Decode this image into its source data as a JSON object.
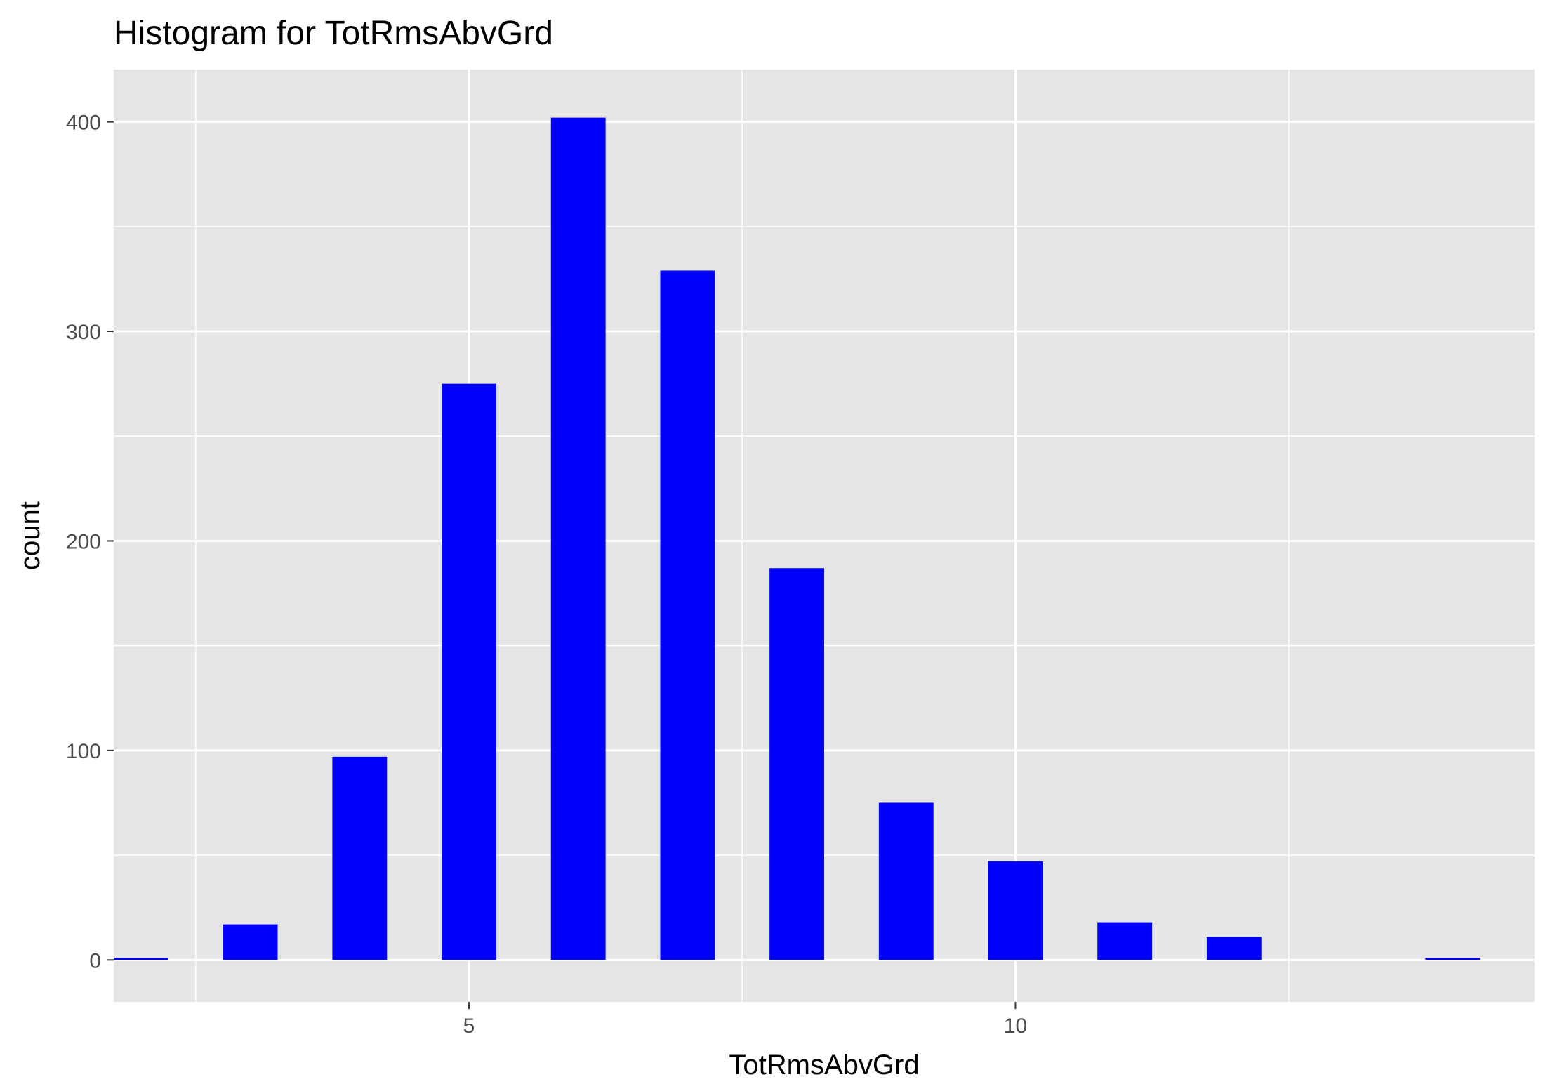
{
  "chart_data": {
    "type": "bar",
    "title": "Histogram for TotRmsAbvGrd",
    "xlabel": "TotRmsAbvGrd",
    "ylabel": "count",
    "x": [
      2,
      3,
      4,
      5,
      6,
      7,
      8,
      9,
      10,
      11,
      12,
      14
    ],
    "values": [
      1,
      17,
      97,
      275,
      402,
      329,
      187,
      75,
      47,
      18,
      11,
      1
    ],
    "xlim": [
      1.75,
      14.75
    ],
    "ylim": [
      -20,
      425
    ],
    "x_ticks": [
      5,
      10
    ],
    "x_tick_labels": [
      "5",
      "10"
    ],
    "y_ticks": [
      0,
      100,
      200,
      300,
      400
    ],
    "y_tick_labels": [
      "0",
      "100",
      "200",
      "300",
      "400"
    ],
    "grid": true,
    "bar_color": "#0000ff",
    "panel_background": "#e5e5e5",
    "grid_color": "#ffffff"
  }
}
